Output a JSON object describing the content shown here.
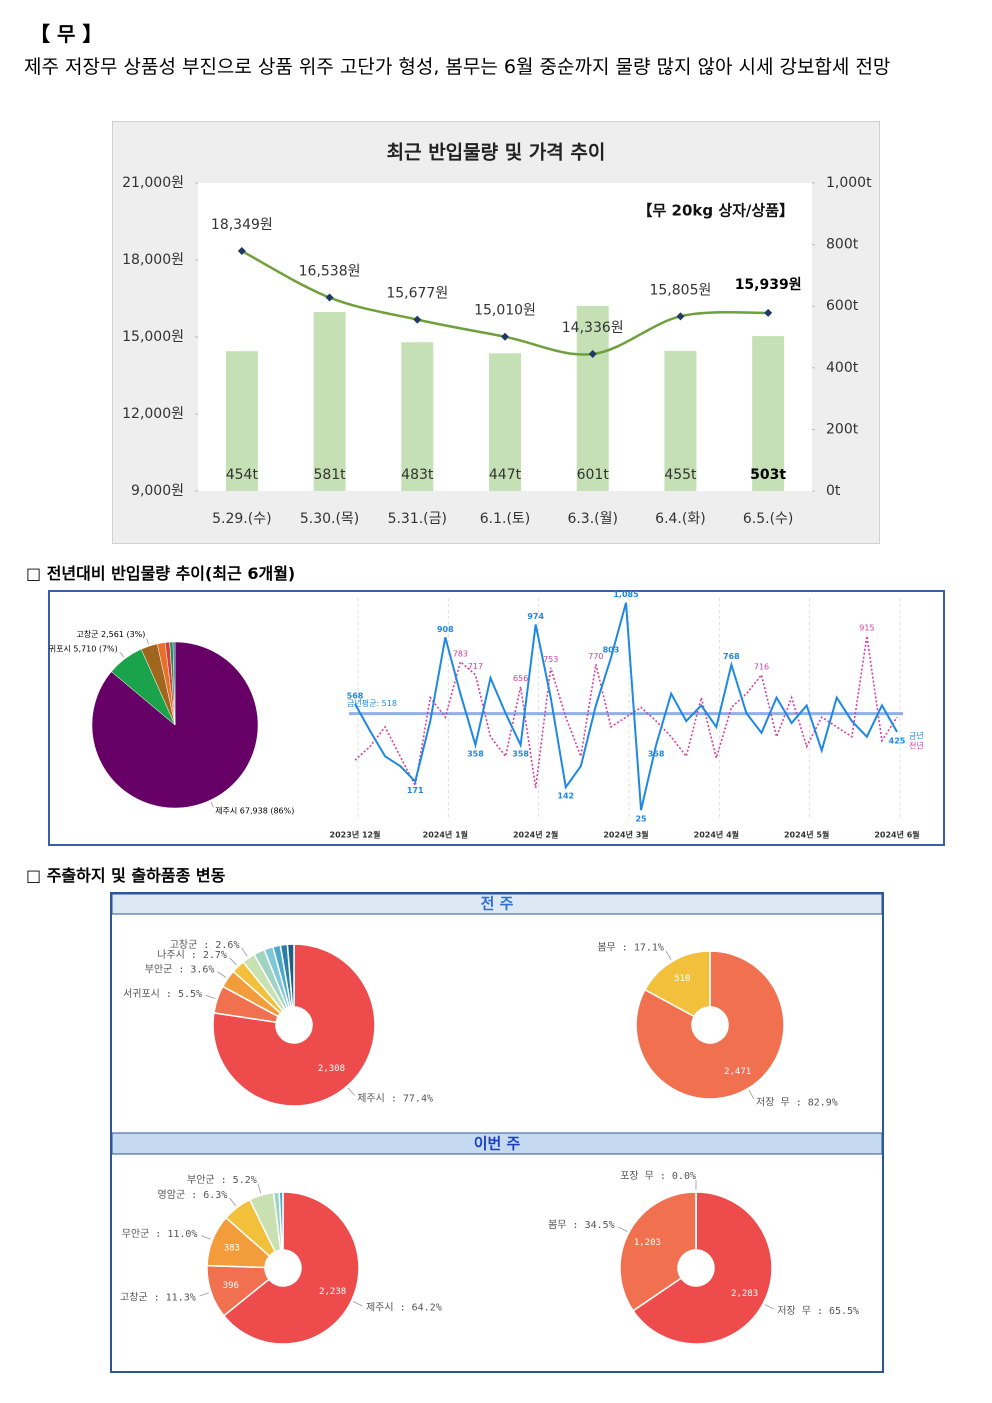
{
  "header": {
    "title": "【 무 】",
    "text": "제주 저장무 상품성 부진으로 상품 위주 고단가 형성, 봄무는 6월 중순까지 물량 많지 않아 시세 강보합세 전망"
  },
  "sections": [
    "□ 전년대비 반입물량 추이(최근 6개월)",
    "□ 주출하지 및 출하품종 변동"
  ],
  "panels": [
    "전 주",
    "이번 주"
  ],
  "chart_data": [
    {
      "type": "combo",
      "title": "최근 반입물량 및 가격 추이",
      "annotation": "【무 20kg 상자/상품】",
      "categories": [
        "5.29.(수)",
        "5.30.(목)",
        "5.31.(금)",
        "6.1.(토)",
        "6.3.(월)",
        "6.4.(화)",
        "6.5.(수)"
      ],
      "series": [
        {
          "type": "bar",
          "axis": "y2",
          "color": "#c5e0b4",
          "values": [
            454,
            581,
            483,
            447,
            601,
            455,
            503
          ],
          "value_labels": [
            "454t",
            "581t",
            "483t",
            "447t",
            "601t",
            "455t",
            "503t"
          ]
        },
        {
          "type": "line",
          "color": "#70a03c",
          "marker_color": "#1f3864",
          "values": [
            18349,
            16538,
            15677,
            15010,
            14336,
            15805,
            15939
          ],
          "value_labels": [
            "18,349원",
            "16,538원",
            "15,677원",
            "15,010원",
            "14,336원",
            "15,805원",
            "15,939원"
          ]
        }
      ],
      "ylim": [
        9000,
        21000
      ],
      "yticks": [
        {
          "value": 9000,
          "label": "9,000원"
        },
        {
          "value": 12000,
          "label": "12,000원"
        },
        {
          "value": 15000,
          "label": "15,000원"
        },
        {
          "value": 18000,
          "label": "18,000원"
        },
        {
          "value": 21000,
          "label": "21,000원"
        }
      ],
      "y2lim": [
        0,
        1000
      ],
      "y2ticks": [
        {
          "value": 0,
          "label": "0t"
        },
        {
          "value": 200,
          "label": "200t"
        },
        {
          "value": 400,
          "label": "400t"
        },
        {
          "value": 600,
          "label": "600t"
        },
        {
          "value": 800,
          "label": "800t"
        },
        {
          "value": 1000,
          "label": "1,000t"
        }
      ]
    },
    {
      "type": "pie",
      "values": [
        67938,
        5710,
        2561,
        1200,
        700,
        500,
        300
      ],
      "labels": [
        "제주시 67,938 (86%)",
        "서귀포시 5,710 (7%)",
        "고창군 2,561 (3%)",
        null,
        null,
        null,
        null
      ],
      "colors": [
        "#660066",
        "#1aa34a",
        "#a0661e",
        "#e8702a",
        "#d4403a",
        "#2e8b57",
        "#1f6f8f"
      ]
    },
    {
      "type": "line",
      "categories": [
        "2023년 12월",
        null,
        null,
        null,
        null,
        null,
        "2024년 1월",
        null,
        null,
        null,
        null,
        null,
        "2024년 2월",
        null,
        null,
        null,
        null,
        null,
        "2024년 3월",
        null,
        null,
        null,
        null,
        null,
        "2024년 4월",
        null,
        null,
        null,
        null,
        null,
        "2024년 5월",
        null,
        null,
        null,
        null,
        null,
        "2024년 6월"
      ],
      "series": [
        {
          "name": "금년",
          "color": "#1e88e5",
          "dash": false,
          "values": [
            568,
            430,
            300,
            250,
            171,
            480,
            908,
            620,
            358,
            700,
            520,
            358,
            974,
            600,
            142,
            250,
            560,
            803,
            1085,
            25,
            358,
            620,
            480,
            560,
            450,
            768,
            520,
            420,
            600,
            470,
            560,
            330,
            600,
            480,
            400,
            560,
            425
          ],
          "value_labels": [
            "568",
            null,
            null,
            null,
            "171",
            null,
            "908",
            null,
            "358",
            null,
            null,
            "358",
            "974",
            null,
            "142",
            null,
            null,
            "803",
            "1,085",
            "25",
            "358",
            null,
            null,
            null,
            null,
            "768",
            null,
            null,
            null,
            null,
            null,
            null,
            null,
            null,
            null,
            null,
            "425"
          ]
        },
        {
          "name": "전년",
          "color": "#d6409f",
          "dash": true,
          "values": [
            280,
            350,
            450,
            300,
            150,
            600,
            500,
            783,
            717,
            400,
            300,
            656,
            139,
            753,
            500,
            300,
            770,
            450,
            500,
            550,
            480,
            400,
            300,
            600,
            291,
            550,
            620,
            716,
            400,
            600,
            350,
            500,
            450,
            400,
            915,
            380,
            500
          ],
          "value_labels": [
            null,
            null,
            null,
            null,
            null,
            null,
            null,
            "783",
            "717",
            null,
            null,
            "656",
            null,
            "753",
            null,
            null,
            "770",
            null,
            null,
            null,
            null,
            null,
            null,
            null,
            null,
            null,
            null,
            "716",
            null,
            null,
            null,
            null,
            null,
            null,
            "915",
            null,
            null
          ]
        }
      ],
      "ylim": [
        0,
        1150
      ],
      "grid": true,
      "average": {
        "label": "금년평균: 518",
        "value": 518,
        "color": "#8fb0e8"
      }
    },
    {
      "type": "donut",
      "values": [
        77.4,
        5.5,
        3.6,
        2.7,
        2.6,
        2.2,
        1.8,
        1.5,
        1.4,
        1.3
      ],
      "labels": [
        "제주시 : 77.4%",
        "서귀포시 : 5.5%",
        "부안군 : 3.6%",
        "나주시 : 2.7%",
        "고창군 : 2.6%",
        null,
        null,
        null,
        null,
        null
      ],
      "inner_labels": [
        "2,308",
        null,
        null,
        null,
        null,
        null,
        null,
        null,
        null,
        null
      ],
      "colors": [
        "#ee4c4c",
        "#f07050",
        "#f39c3c",
        "#f2c03a",
        "#c9e0b0",
        "#9fd4c0",
        "#7fc8d8",
        "#4ea8c8",
        "#2a7fa8",
        "#1f5f7f"
      ]
    },
    {
      "type": "donut",
      "values": [
        82.9,
        17.1
      ],
      "labels": [
        "저장 무 : 82.9%",
        "봄무 : 17.1%"
      ],
      "inner_labels": [
        "2,471",
        "510"
      ],
      "colors": [
        "#f07050",
        "#f2c03a"
      ]
    },
    {
      "type": "donut",
      "values": [
        64.2,
        11.3,
        11.0,
        6.3,
        5.2,
        1.2,
        0.8
      ],
      "labels": [
        "제주시 : 64.2%",
        "고창군 : 11.3%",
        "무안군 : 11.0%",
        "영암군 : 6.3%",
        "부안군 : 5.2%",
        null,
        null
      ],
      "inner_labels": [
        "2,238",
        "396",
        "383",
        null,
        null,
        null,
        null
      ],
      "colors": [
        "#ee4c4c",
        "#f07050",
        "#f39c3c",
        "#f2c03a",
        "#c9e0b0",
        "#9fd4c0",
        "#4ea8c8"
      ]
    },
    {
      "type": "donut",
      "values": [
        65.5,
        34.5,
        0.0
      ],
      "labels": [
        "저장 무 : 65.5%",
        "봄무 : 34.5%",
        "포장 무 : 0.0%"
      ],
      "inner_labels": [
        "2,283",
        "1,203",
        null
      ],
      "colors": [
        "#ee4c4c",
        "#f07050",
        "#f2c03a"
      ]
    }
  ]
}
